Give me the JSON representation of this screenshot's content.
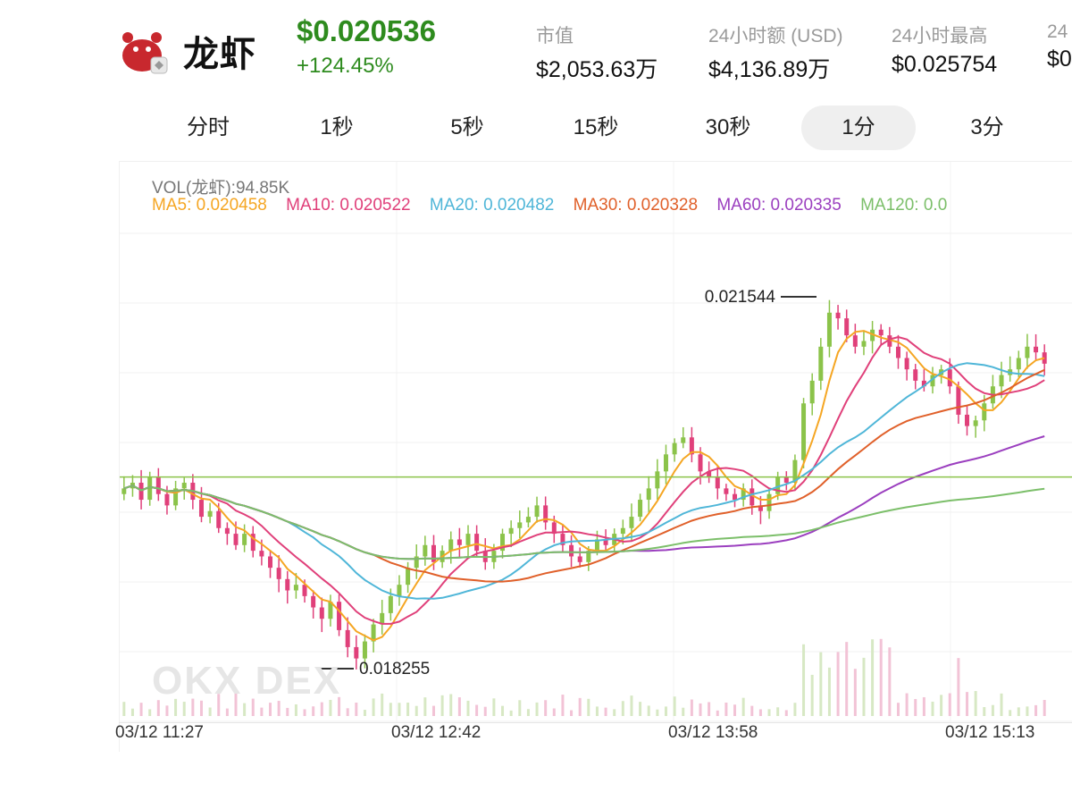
{
  "token": {
    "name": "龙虾",
    "price": "$0.020536",
    "change": "+124.45%",
    "logo_icon": "red-crab-mascot-icon"
  },
  "stats": [
    {
      "label": "市值",
      "value": "$2,053.63万"
    },
    {
      "label": "24小时额 (USD)",
      "value": "$4,136.89万"
    },
    {
      "label": "24小时最高",
      "value": "$0.025754"
    },
    {
      "label": "24",
      "value": "$0"
    }
  ],
  "tabs": [
    {
      "label": "分时",
      "active": false
    },
    {
      "label": "1秒",
      "active": false
    },
    {
      "label": "5秒",
      "active": false
    },
    {
      "label": "15秒",
      "active": false
    },
    {
      "label": "30秒",
      "active": false
    },
    {
      "label": "1分",
      "active": true
    },
    {
      "label": "3分",
      "active": false
    }
  ],
  "indicators": {
    "vol": "VOL(龙虾):94.85K",
    "ma5": "MA5: 0.020458",
    "ma10": "MA10: 0.020522",
    "ma20": "MA20: 0.020482",
    "ma30": "MA30: 0.020328",
    "ma60": "MA60: 0.020335",
    "ma120": "MA120: 0.0"
  },
  "colors": {
    "up": "#8bc34a",
    "down": "#e0407a",
    "ma5": "#f5a623",
    "ma10": "#e0407a",
    "ma20": "#4fb6d8",
    "ma30": "#e0602a",
    "ma60": "#9b3fbf",
    "ma120": "#7cbf6a",
    "price_green": "#2e8b1e"
  },
  "watermark": "OKX DEX",
  "chart_data": {
    "type": "candlestick",
    "x_tick_labels": [
      "03/12 11:27",
      "03/12 12:42",
      "03/12 13:58",
      "03/12 15:13"
    ],
    "high_label": "0.021544",
    "low_label": "0.018255",
    "ylim": [
      0.018,
      0.0221
    ],
    "closes": [
      0.01985,
      0.0199,
      0.01975,
      0.01995,
      0.0198,
      0.0197,
      0.01985,
      0.0199,
      0.01975,
      0.0196,
      0.01965,
      0.0195,
      0.01945,
      0.01935,
      0.01945,
      0.0193,
      0.01925,
      0.01915,
      0.01905,
      0.01895,
      0.019,
      0.0189,
      0.0188,
      0.0187,
      0.01885,
      0.0186,
      0.01845,
      0.01835,
      0.0185,
      0.01865,
      0.01875,
      0.0189,
      0.019,
      0.01915,
      0.01925,
      0.01935,
      0.0192,
      0.0193,
      0.0194,
      0.01935,
      0.01945,
      0.0193,
      0.0192,
      0.0193,
      0.01945,
      0.0195,
      0.01955,
      0.0196,
      0.0197,
      0.01955,
      0.01945,
      0.01935,
      0.01925,
      0.0192,
      0.0193,
      0.0194,
      0.01935,
      0.01945,
      0.0195,
      0.0196,
      0.01975,
      0.01985,
      0.02,
      0.02015,
      0.02025,
      0.0203,
      0.02015,
      0.02,
      0.01995,
      0.01985,
      0.0198,
      0.01975,
      0.01985,
      0.0197,
      0.01965,
      0.0198,
      0.01995,
      0.0199,
      0.0201,
      0.0206,
      0.0208,
      0.0211,
      0.0214,
      0.02135,
      0.0212,
      0.0211,
      0.02115,
      0.02125,
      0.0212,
      0.0211,
      0.021,
      0.0209,
      0.0208,
      0.02075,
      0.02085,
      0.0209,
      0.02075,
      0.0205,
      0.0204,
      0.02045,
      0.0206,
      0.02075,
      0.02085,
      0.0209,
      0.021,
      0.0211,
      0.02105,
      0.02095
    ],
    "volume_scale": "relative"
  }
}
